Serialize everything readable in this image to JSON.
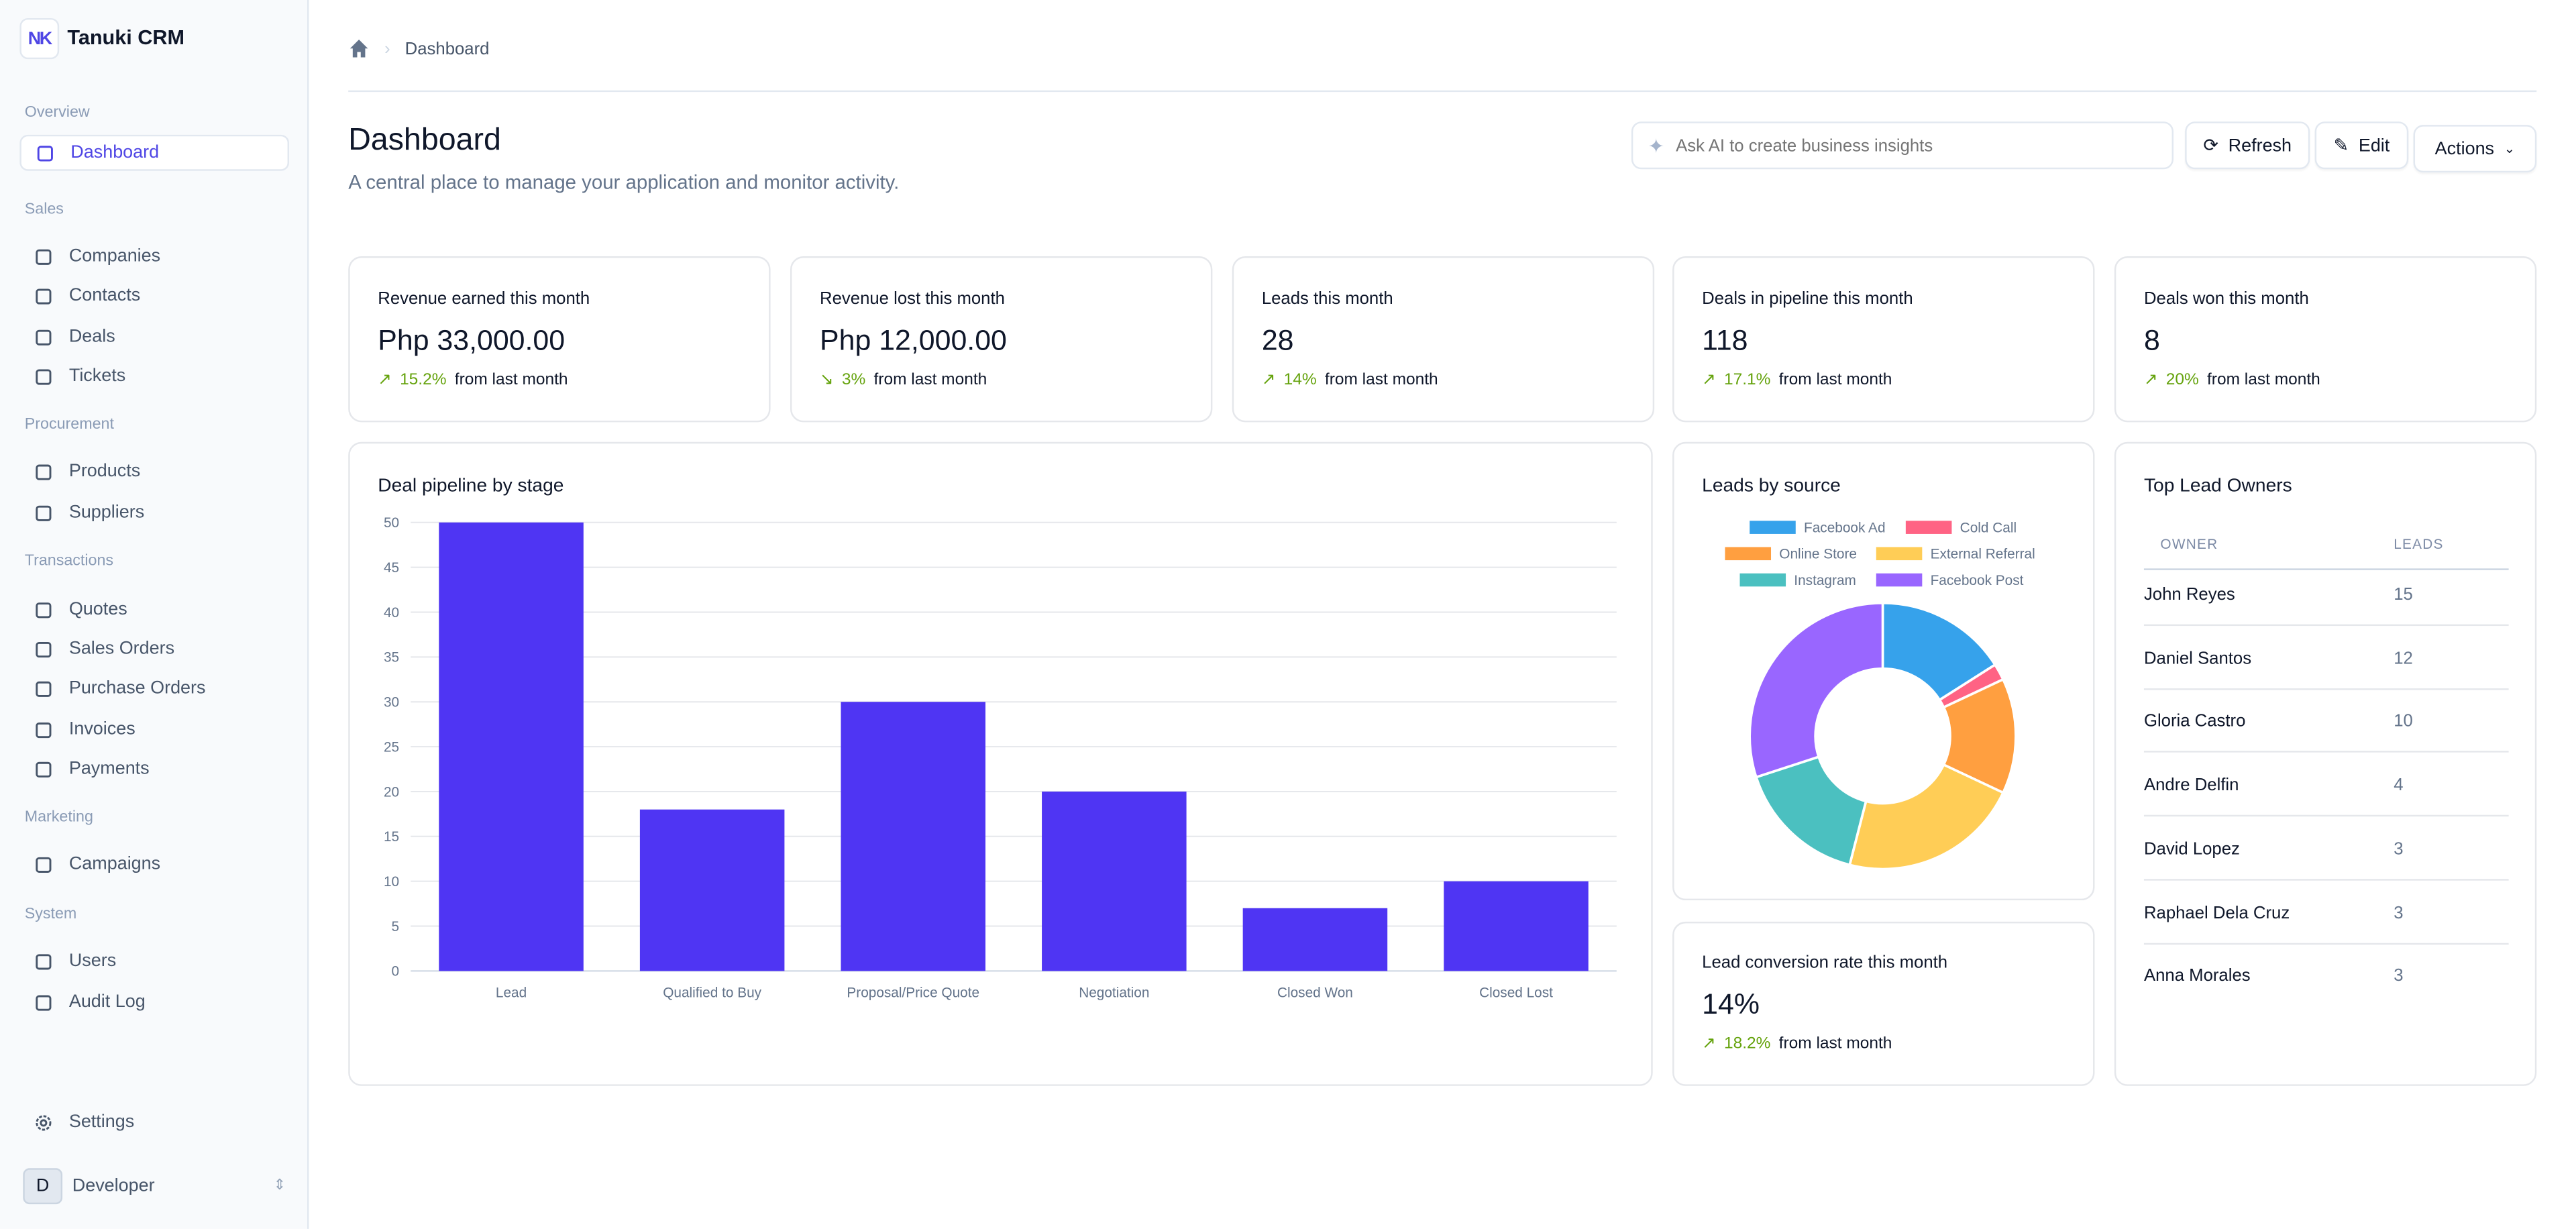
{
  "app": {
    "title": "Tanuki CRM",
    "logo": "NK"
  },
  "sidebar": {
    "sections": [
      {
        "label": "Overview",
        "items": [
          {
            "label": "Dashboard",
            "icon": "chart-icon",
            "active": true
          }
        ]
      },
      {
        "label": "Sales",
        "items": [
          {
            "label": "Companies",
            "icon": "building-icon"
          },
          {
            "label": "Contacts",
            "icon": "phone-icon"
          },
          {
            "label": "Deals",
            "icon": "bag-icon"
          },
          {
            "label": "Tickets",
            "icon": "ticket-icon"
          }
        ]
      },
      {
        "label": "Procurement",
        "items": [
          {
            "label": "Products",
            "icon": "archive-icon"
          },
          {
            "label": "Suppliers",
            "icon": "truck-icon"
          }
        ]
      },
      {
        "label": "Transactions",
        "items": [
          {
            "label": "Quotes",
            "icon": "file-icon"
          },
          {
            "label": "Sales Orders",
            "icon": "cart-icon"
          },
          {
            "label": "Purchase Orders",
            "icon": "clipboard-icon"
          },
          {
            "label": "Invoices",
            "icon": "receipt-icon"
          },
          {
            "label": "Payments",
            "icon": "money-icon"
          }
        ]
      },
      {
        "label": "Marketing",
        "items": [
          {
            "label": "Campaigns",
            "icon": "megaphone-icon"
          }
        ]
      },
      {
        "label": "System",
        "items": [
          {
            "label": "Users",
            "icon": "user-icon"
          },
          {
            "label": "Audit Log",
            "icon": "shield-icon"
          }
        ]
      }
    ],
    "settings": "Settings",
    "user": {
      "initial": "D",
      "name": "Developer"
    }
  },
  "breadcrumb": {
    "current": "Dashboard"
  },
  "header": {
    "title": "Dashboard",
    "subtitle": "A central place to manage your application and monitor activity.",
    "ai_placeholder": "Ask AI to create business insights",
    "refresh": "Refresh",
    "edit": "Edit",
    "actions": "Actions"
  },
  "stats": [
    {
      "label": "Revenue earned this month",
      "value": "Php 33,000.00",
      "change": "15.2%",
      "trend": "up",
      "suffix": "from last month"
    },
    {
      "label": "Revenue lost this month",
      "value": "Php 12,000.00",
      "change": "3%",
      "trend": "down",
      "suffix": "from last month"
    },
    {
      "label": "Leads this month",
      "value": "28",
      "change": "14%",
      "trend": "up",
      "suffix": "from last month"
    },
    {
      "label": "Deals in pipeline this month",
      "value": "118",
      "change": "17.1%",
      "trend": "up",
      "suffix": "from last month"
    },
    {
      "label": "Deals won this month",
      "value": "8",
      "change": "20%",
      "trend": "up",
      "suffix": "from last month"
    }
  ],
  "conversion": {
    "label": "Lead conversion rate this month",
    "value": "14%",
    "change": "18.2%",
    "suffix": "from last month"
  },
  "owners": {
    "title": "Top Lead Owners",
    "headers": [
      "OWNER",
      "LEADS"
    ],
    "rows": [
      [
        "John Reyes",
        "15"
      ],
      [
        "Daniel Santos",
        "12"
      ],
      [
        "Gloria Castro",
        "10"
      ],
      [
        "Andre Delfin",
        "4"
      ],
      [
        "David Lopez",
        "3"
      ],
      [
        "Raphael Dela Cruz",
        "3"
      ],
      [
        "Anna Morales",
        "3"
      ]
    ]
  },
  "chart_data": [
    {
      "type": "bar",
      "title": "Deal pipeline by stage",
      "categories": [
        "Lead",
        "Qualified to Buy",
        "Proposal/Price Quote",
        "Negotiation",
        "Closed Won",
        "Closed Lost"
      ],
      "values": [
        50,
        18,
        30,
        20,
        7,
        10
      ],
      "ylim": [
        0,
        50
      ],
      "yticks": [
        "0",
        "5",
        "10",
        "15",
        "20",
        "25",
        "30",
        "35",
        "40",
        "45",
        "50"
      ],
      "color": "#4f35f3",
      "grid": true
    },
    {
      "type": "pie",
      "variant": "donut",
      "title": "Leads by source",
      "legend": "top",
      "categories": [
        "Facebook Ad",
        "Cold Call",
        "Online Store",
        "External Referral",
        "Instagram",
        "Facebook Post"
      ],
      "values": [
        8,
        1,
        7,
        11,
        8,
        15
      ],
      "colors": [
        "#36a2eb",
        "#ff6384",
        "#ff9f40",
        "#ffcd56",
        "#4bc0c0",
        "#9966ff"
      ]
    }
  ]
}
